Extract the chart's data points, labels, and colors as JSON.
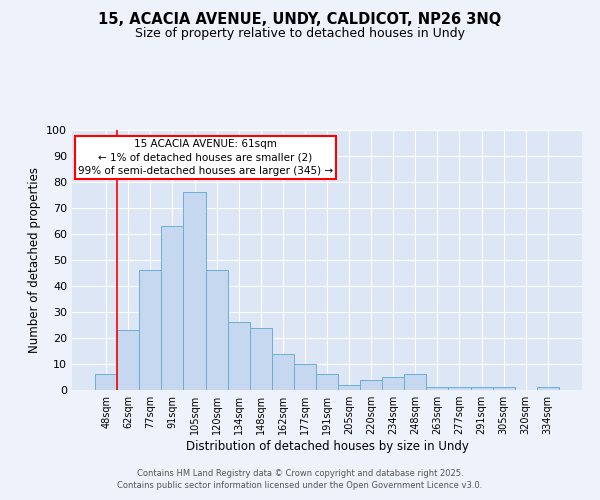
{
  "title": "15, ACACIA AVENUE, UNDY, CALDICOT, NP26 3NQ",
  "subtitle": "Size of property relative to detached houses in Undy",
  "xlabel": "Distribution of detached houses by size in Undy",
  "ylabel": "Number of detached properties",
  "bar_labels": [
    "48sqm",
    "62sqm",
    "77sqm",
    "91sqm",
    "105sqm",
    "120sqm",
    "134sqm",
    "148sqm",
    "162sqm",
    "177sqm",
    "191sqm",
    "205sqm",
    "220sqm",
    "234sqm",
    "248sqm",
    "263sqm",
    "277sqm",
    "291sqm",
    "305sqm",
    "320sqm",
    "334sqm"
  ],
  "bar_values": [
    6,
    23,
    46,
    63,
    76,
    46,
    26,
    24,
    14,
    10,
    6,
    2,
    4,
    5,
    6,
    1,
    1,
    1,
    1,
    0,
    1
  ],
  "bar_color": "#c5d8f0",
  "bar_edge_color": "#6baed6",
  "ylim": [
    0,
    100
  ],
  "yticks": [
    0,
    10,
    20,
    30,
    40,
    50,
    60,
    70,
    80,
    90,
    100
  ],
  "red_line_index": 1,
  "annotation_title": "15 ACACIA AVENUE: 61sqm",
  "annotation_line1": "← 1% of detached houses are smaller (2)",
  "annotation_line2": "99% of semi-detached houses are larger (345) →",
  "footer_line1": "Contains HM Land Registry data © Crown copyright and database right 2025.",
  "footer_line2": "Contains public sector information licensed under the Open Government Licence v3.0.",
  "bg_color": "#eef2fb",
  "plot_bg_color": "#dce6f5"
}
